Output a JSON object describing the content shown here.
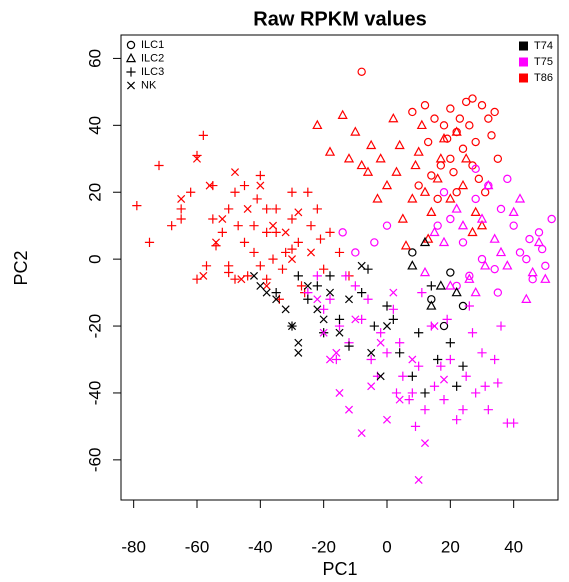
{
  "chart_data": {
    "type": "scatter",
    "title": "Raw RPKM values",
    "xlabel": "PC1",
    "ylabel": "PC2",
    "xlim": [
      -84,
      54
    ],
    "ylim": [
      -72,
      67
    ],
    "xticks": [
      -80,
      -60,
      -40,
      -20,
      0,
      20,
      40
    ],
    "yticks": [
      -60,
      -40,
      -20,
      0,
      20,
      40,
      60
    ],
    "marker_legend": [
      {
        "name": "ILC1",
        "marker": "circle"
      },
      {
        "name": "ILC2",
        "marker": "triangle"
      },
      {
        "name": "ILC3",
        "marker": "plus"
      },
      {
        "name": "NK",
        "marker": "cross"
      }
    ],
    "color_legend": [
      {
        "name": "T74",
        "color": "#000000"
      },
      {
        "name": "T75",
        "color": "#ff00ff"
      },
      {
        "name": "T86",
        "color": "#ff0000"
      }
    ],
    "series": [
      {
        "marker": 0,
        "color": 2,
        "x": [
          8,
          12,
          15,
          18,
          20,
          22,
          25,
          27,
          30,
          32,
          28,
          24,
          20,
          17,
          14,
          10,
          26,
          33,
          35,
          22,
          29,
          31,
          19,
          23,
          13,
          16,
          -8,
          34,
          27,
          21
        ],
        "y": [
          44,
          46,
          42,
          40,
          45,
          38,
          47,
          48,
          46,
          42,
          35,
          33,
          30,
          28,
          25,
          22,
          40,
          37,
          30,
          20,
          24,
          20,
          36,
          42,
          35,
          18,
          56,
          44,
          28,
          26
        ]
      },
      {
        "marker": 0,
        "color": 1,
        "x": [
          16,
          20,
          24,
          28,
          32,
          36,
          40,
          44,
          48,
          50,
          52,
          38,
          30,
          26,
          22,
          42,
          46,
          35,
          18,
          -14,
          -10,
          -4,
          0,
          45,
          34,
          28,
          49
        ],
        "y": [
          10,
          12,
          5,
          18,
          22,
          15,
          10,
          0,
          8,
          -2,
          12,
          24,
          0,
          -5,
          -8,
          2,
          -6,
          -10,
          20,
          8,
          2,
          5,
          10,
          6,
          -3,
          27,
          3
        ]
      },
      {
        "marker": 0,
        "color": 0,
        "x": [
          8,
          14,
          20,
          24,
          18
        ],
        "y": [
          2,
          -12,
          -4,
          -14,
          -20
        ]
      },
      {
        "marker": 1,
        "color": 2,
        "x": [
          -22,
          -14,
          -10,
          -12,
          -8,
          -5,
          -2,
          0,
          3,
          5,
          8,
          10,
          12,
          14,
          16,
          18,
          20,
          22,
          25,
          28,
          30,
          6,
          -3,
          -18,
          2,
          9,
          13,
          24,
          27,
          17,
          4,
          -6,
          11
        ],
        "y": [
          40,
          43,
          38,
          30,
          28,
          34,
          30,
          22,
          26,
          12,
          18,
          32,
          20,
          14,
          24,
          36,
          18,
          38,
          30,
          14,
          10,
          4,
          18,
          32,
          42,
          28,
          6,
          22,
          8,
          30,
          34,
          26,
          40
        ]
      },
      {
        "marker": 1,
        "color": 1,
        "x": [
          12,
          18,
          22,
          26,
          30,
          34,
          38,
          42,
          46,
          50,
          28,
          32,
          36,
          20,
          24,
          40,
          44,
          15,
          31,
          48
        ],
        "y": [
          -4,
          5,
          15,
          -6,
          12,
          6,
          -2,
          18,
          -4,
          -6,
          -10,
          22,
          2,
          -8,
          10,
          14,
          -12,
          8,
          -2,
          5
        ]
      },
      {
        "marker": 1,
        "color": 0,
        "x": [
          8,
          12,
          22,
          14,
          17
        ],
        "y": [
          -2,
          5,
          -10,
          -14,
          -8
        ]
      },
      {
        "marker": 2,
        "color": 2,
        "x": [
          -79,
          -75,
          -72,
          -68,
          -65,
          -62,
          -60,
          -58,
          -55,
          -52,
          -50,
          -48,
          -45,
          -42,
          -40,
          -38,
          -35,
          -32,
          -30,
          -28,
          -25,
          -22,
          -20,
          -18,
          -15,
          -12,
          -60,
          -57,
          -54,
          -50,
          -47,
          -44,
          -41,
          -38,
          -36,
          -33,
          -30,
          -27,
          -24,
          -21,
          -45,
          -40,
          -35,
          -30,
          -55,
          -65,
          -50,
          -42,
          -26,
          -34,
          -48,
          -38
        ],
        "y": [
          16,
          5,
          28,
          10,
          15,
          20,
          31,
          37,
          12,
          8,
          15,
          20,
          5,
          10,
          -2,
          15,
          8,
          2,
          12,
          5,
          20,
          15,
          -3,
          8,
          2,
          -5,
          -6,
          -2,
          4,
          -4,
          10,
          -5,
          18,
          -6,
          0,
          -3,
          3,
          -8,
          10,
          6,
          22,
          25,
          15,
          20,
          22,
          12,
          -2,
          2,
          -10,
          -12,
          -6,
          8
        ]
      },
      {
        "marker": 2,
        "color": 1,
        "x": [
          -22,
          -18,
          -15,
          -12,
          -10,
          -8,
          -5,
          -2,
          0,
          2,
          5,
          8,
          10,
          12,
          15,
          18,
          20,
          22,
          25,
          28,
          30,
          32,
          35,
          38,
          -20,
          -16,
          -6,
          -3,
          4,
          7,
          14,
          17,
          24,
          27,
          31,
          34,
          26,
          19,
          11,
          3,
          -25,
          -13,
          36,
          40,
          9
        ],
        "y": [
          -5,
          -12,
          -20,
          -25,
          -8,
          -18,
          -30,
          -22,
          -28,
          -15,
          -35,
          -40,
          -32,
          -45,
          -38,
          -42,
          -30,
          -48,
          -35,
          -40,
          -28,
          -45,
          -37,
          -49,
          -15,
          -30,
          -12,
          -35,
          -25,
          -42,
          -20,
          -32,
          -45,
          -22,
          -38,
          -30,
          -14,
          -18,
          -10,
          -40,
          -10,
          -5,
          -20,
          -49,
          -50
        ]
      },
      {
        "marker": 2,
        "color": 0,
        "x": [
          -35,
          -30,
          -25,
          -22,
          -20,
          -15,
          -12,
          -8,
          -4,
          0,
          4,
          8,
          12,
          16,
          20,
          24,
          -18,
          -6,
          2,
          14,
          22,
          -28,
          10
        ],
        "y": [
          -10,
          -20,
          -12,
          -8,
          -22,
          -18,
          -26,
          -10,
          -20,
          -14,
          -28,
          -35,
          -40,
          -30,
          -25,
          -32,
          -5,
          -3,
          -18,
          -8,
          -38,
          -5,
          -22
        ]
      },
      {
        "marker": 3,
        "color": 2,
        "x": [
          -65,
          -60,
          -56,
          -52,
          -48,
          -44,
          -40,
          -36,
          -32,
          -28,
          -24,
          -58,
          -46,
          -38,
          -30,
          -54
        ],
        "y": [
          18,
          30,
          22,
          12,
          26,
          15,
          22,
          10,
          8,
          14,
          2,
          -5,
          -6,
          -8,
          0,
          5
        ]
      },
      {
        "marker": 3,
        "color": 1,
        "x": [
          -22,
          -18,
          -15,
          -12,
          -8,
          -5,
          -2,
          0,
          4,
          8,
          12,
          15,
          18,
          -10,
          -16,
          10,
          2,
          -20
        ],
        "y": [
          -12,
          -30,
          -40,
          -45,
          -52,
          -38,
          -25,
          -48,
          -42,
          -30,
          -55,
          -20,
          -36,
          -18,
          -28,
          -66,
          -10,
          -22
        ]
      },
      {
        "marker": 3,
        "color": 0,
        "x": [
          -42,
          -38,
          -35,
          -30,
          -28,
          -25,
          -22,
          -20,
          -15,
          -12,
          -8,
          -5,
          -2,
          -32,
          -28,
          -18,
          0,
          -40
        ],
        "y": [
          -5,
          -10,
          -12,
          -20,
          -25,
          -8,
          -15,
          -18,
          -22,
          -12,
          -2,
          -28,
          -35,
          -15,
          -28,
          -10,
          -20,
          -8
        ]
      }
    ]
  }
}
